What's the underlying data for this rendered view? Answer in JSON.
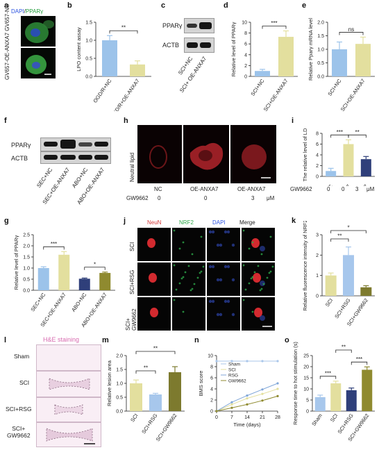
{
  "labels": {
    "a": "a",
    "b": "b",
    "c": "c",
    "d": "d",
    "e": "e",
    "f": "f",
    "g": "g",
    "h": "h",
    "i": "i",
    "j": "j",
    "k": "k",
    "l": "l",
    "m": "m",
    "n": "n",
    "o": "o"
  },
  "colors": {
    "blue": "#9cc3ea",
    "khaki": "#e3df9e",
    "navy": "#2f3f7a",
    "olive": "#8f8a2f",
    "lightblue": "#a7c7ec",
    "darkolive": "#7d7a2e",
    "green": "#2ea84a",
    "red": "#d43a3a"
  },
  "panel_a": {
    "dapi": "DAPI",
    "sep": "/",
    "ppar": "PPARγ",
    "row1": "GV657-NC",
    "row2": "GV657-\nOE-ANXA7"
  },
  "panel_c": {
    "protein": "PPARγ",
    "control": "ACTB",
    "lanes": [
      "SCI+NC",
      "SCI+ OE-ANXA7"
    ]
  },
  "panel_f": {
    "protein": "PPARγ",
    "control": "ACTB",
    "lanes": [
      "SEC+NC",
      "SEC+OE-ANXA7",
      "ABO+NC",
      "ABO+OE-ANXA7"
    ]
  },
  "panel_h": {
    "row_label": "Neutral lipid",
    "cols": [
      "NC",
      "OE-ANXA7",
      "OE-ANXA7"
    ],
    "gw_label": "GW9662",
    "gw_values": [
      "0",
      "0",
      "3"
    ],
    "unit": "μM"
  },
  "panel_i_extra": {
    "gw_label": "GW9662",
    "gw_values": [
      "0",
      "0",
      "3"
    ],
    "unit": "μM"
  },
  "panel_j": {
    "cols": [
      "NeuN",
      "NRF2",
      "DAPI",
      "Merge"
    ],
    "rows": [
      "SCI",
      "SCI+RSG",
      "SCI+\nGW9662"
    ]
  },
  "panel_l": {
    "title": "H&E staining",
    "rows": [
      "Sham",
      "SCI",
      "SCI+RSG",
      "SCI+\nGW9662"
    ]
  },
  "chart_data": [
    {
      "id": "b",
      "type": "bar",
      "categories": [
        "OGD/R+NC",
        "OGD/R+OE-ANXA7"
      ],
      "values": [
        1.0,
        0.33
      ],
      "errors": [
        0.13,
        0.1
      ],
      "ylabel": "LPO content assay",
      "ylim": [
        0,
        1.5
      ],
      "yticks": [
        "0.0",
        "0.5",
        "1.0",
        "1.5"
      ],
      "sig": [
        {
          "from": 0,
          "to": 1,
          "text": "**"
        }
      ]
    },
    {
      "id": "d",
      "type": "bar",
      "categories": [
        "SCI+NC",
        "SCI+OE-ANXA7"
      ],
      "values": [
        1.0,
        7.3
      ],
      "errors": [
        0.3,
        1.1
      ],
      "ylabel": "Relative level of PPARγ",
      "ylim": [
        0,
        10
      ],
      "yticks": [
        "0",
        "2",
        "4",
        "6",
        "8",
        "10"
      ],
      "sig": [
        {
          "from": 0,
          "to": 1,
          "text": "***"
        }
      ]
    },
    {
      "id": "e",
      "type": "bar",
      "categories": [
        "SCI+NC",
        "SCI+OE-ANXA7"
      ],
      "values": [
        1.0,
        1.2
      ],
      "errors": [
        0.27,
        0.25
      ],
      "ylabel": "Relative Pparγ mRNA level",
      "ylim": [
        0,
        2.0
      ],
      "yticks": [
        "0.0",
        "0.5",
        "1.0",
        "1.5",
        "2.0"
      ],
      "sig": [
        {
          "from": 0,
          "to": 1,
          "text": "ns"
        }
      ]
    },
    {
      "id": "i",
      "type": "bar",
      "categories": [
        "NC",
        "OE-ANXA7",
        "OE-ANXA7"
      ],
      "values": [
        1.0,
        6.0,
        3.2
      ],
      "errors": [
        0.5,
        0.8,
        0.5
      ],
      "ylabel": "The relative level of LD",
      "ylim": [
        0,
        8
      ],
      "yticks": [
        "0",
        "2",
        "4",
        "6",
        "8"
      ],
      "sig": [
        {
          "from": 0,
          "to": 1,
          "text": "***"
        },
        {
          "from": 1,
          "to": 2,
          "text": "**"
        }
      ]
    },
    {
      "id": "g",
      "type": "bar",
      "categories": [
        "SEC+NC",
        "SEC+OE-ANXA7",
        "ABO+NC",
        "ABO+OE-ANXA7"
      ],
      "values": [
        1.0,
        1.6,
        0.52,
        0.78
      ],
      "errors": [
        0.06,
        0.14,
        0.03,
        0.04
      ],
      "ylabel": "Relative level of PPARγ",
      "ylim": [
        0,
        2.5
      ],
      "yticks": [
        "0.0",
        "0.5",
        "1.0",
        "1.5",
        "2.0",
        "2.5"
      ],
      "sig": [
        {
          "from": 0,
          "to": 1,
          "text": "***"
        },
        {
          "from": 2,
          "to": 3,
          "text": "*"
        }
      ]
    },
    {
      "id": "k",
      "type": "bar",
      "categories": [
        "SCI",
        "SCI+RSG",
        "SCI+GW9662"
      ],
      "values": [
        1.0,
        2.0,
        0.42
      ],
      "errors": [
        0.12,
        0.4,
        0.08
      ],
      "ylabel": "Relative fluorescence intensity of NRF2",
      "ylim": [
        0,
        3
      ],
      "yticks": [
        "0",
        "1",
        "2",
        "3"
      ],
      "sig": [
        {
          "from": 0,
          "to": 1,
          "text": "**"
        },
        {
          "from": 0,
          "to": 2,
          "text": "*"
        }
      ]
    },
    {
      "id": "m",
      "type": "bar",
      "categories": [
        "SCI",
        "SCI+RSG",
        "SCI+GW9662"
      ],
      "values": [
        1.0,
        0.6,
        1.4
      ],
      "errors": [
        0.12,
        0.04,
        0.2
      ],
      "ylabel": "Relative lesion area",
      "ylim": [
        0,
        2.0
      ],
      "yticks": [
        "0.0",
        "0.5",
        "1.0",
        "1.5",
        "2.0"
      ],
      "sig": [
        {
          "from": 0,
          "to": 1,
          "text": "**"
        },
        {
          "from": 0,
          "to": 2,
          "text": "**"
        }
      ]
    },
    {
      "id": "n",
      "type": "line",
      "x": [
        0,
        7,
        14,
        21,
        28
      ],
      "xlabel": "Time (days)",
      "ylabel": "BMS score",
      "ylim": [
        0,
        10
      ],
      "yticks": [
        "0",
        "2",
        "4",
        "6",
        "8",
        "10"
      ],
      "xticks": [
        "0",
        "7",
        "14",
        "21",
        "28"
      ],
      "series": [
        {
          "name": "Sham",
          "values": [
            9,
            9,
            9,
            9,
            9
          ]
        },
        {
          "name": "SCI",
          "values": [
            0,
            1.2,
            2.3,
            3.1,
            4.0
          ]
        },
        {
          "name": "RSG",
          "values": [
            0,
            1.6,
            2.8,
            3.9,
            5.0
          ]
        },
        {
          "name": "GW9662",
          "values": [
            0,
            0.6,
            1.2,
            1.9,
            2.7
          ]
        }
      ]
    },
    {
      "id": "o",
      "type": "bar",
      "categories": [
        "Sham",
        "SCI",
        "SCI+RSG",
        "SCI+GW9662"
      ],
      "values": [
        6.3,
        12.5,
        9.4,
        18.6
      ],
      "errors": [
        0.9,
        1.0,
        1.0,
        1.3
      ],
      "ylabel": "Response time to hot stimulation (s)",
      "ylim": [
        0,
        25
      ],
      "yticks": [
        "0",
        "5",
        "10",
        "15",
        "20",
        "25"
      ],
      "sig": [
        {
          "from": 0,
          "to": 1,
          "text": "***"
        },
        {
          "from": 1,
          "to": 2,
          "text": "**"
        },
        {
          "from": 2,
          "to": 3,
          "text": "***"
        }
      ]
    }
  ]
}
